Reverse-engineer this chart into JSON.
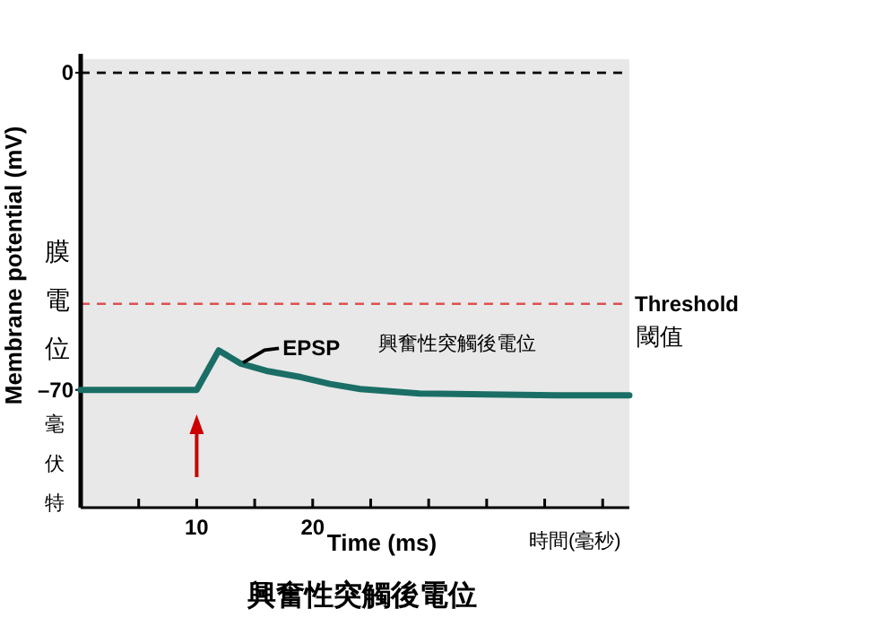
{
  "chart_data": {
    "type": "line",
    "xlabel": "Time (ms)",
    "ylabel": "Membrane potential (mV)",
    "x": [
      0,
      10,
      11.9,
      13.8,
      16,
      19,
      21.5,
      24.1,
      29.2,
      35,
      41,
      47.3
    ],
    "series": [
      {
        "color": "#1a6e66",
        "values": [
          -70,
          -70,
          -61.3,
          -64.2,
          -65.8,
          -67.2,
          -68.7,
          -69.8,
          -70.8,
          -71,
          -71.2,
          -71.2
        ]
      }
    ],
    "xlim": [
      0,
      47.3
    ],
    "ylim": [
      -96,
      3
    ],
    "xticks": [
      {
        "value": 5,
        "label": null
      },
      10,
      {
        "value": 15,
        "label": null
      },
      20,
      {
        "value": 25,
        "label": null
      },
      {
        "value": 30,
        "label": null
      },
      {
        "value": 35,
        "label": null
      },
      {
        "value": 40,
        "label": null
      },
      {
        "value": 45,
        "label": null
      }
    ],
    "yticks": [
      0,
      {
        "value": -70,
        "label": "–70"
      }
    ],
    "ref_lines": [
      {
        "axis": "y",
        "value": 0,
        "color": "#000000",
        "line_style": "dashed"
      },
      {
        "axis": "y",
        "value": -51,
        "label": "Threshold",
        "color": "#e05050",
        "line_style": "dashed"
      }
    ],
    "marker": "none",
    "line_style": "solid",
    "annotations": [
      {
        "text": "EPSP",
        "x": 14,
        "y": -64
      },
      "興奮性突觸後電位",
      "閾值",
      "膜電位",
      "毫伏特",
      "時間(毫秒)",
      "興奮性突觸後電位"
    ]
  }
}
